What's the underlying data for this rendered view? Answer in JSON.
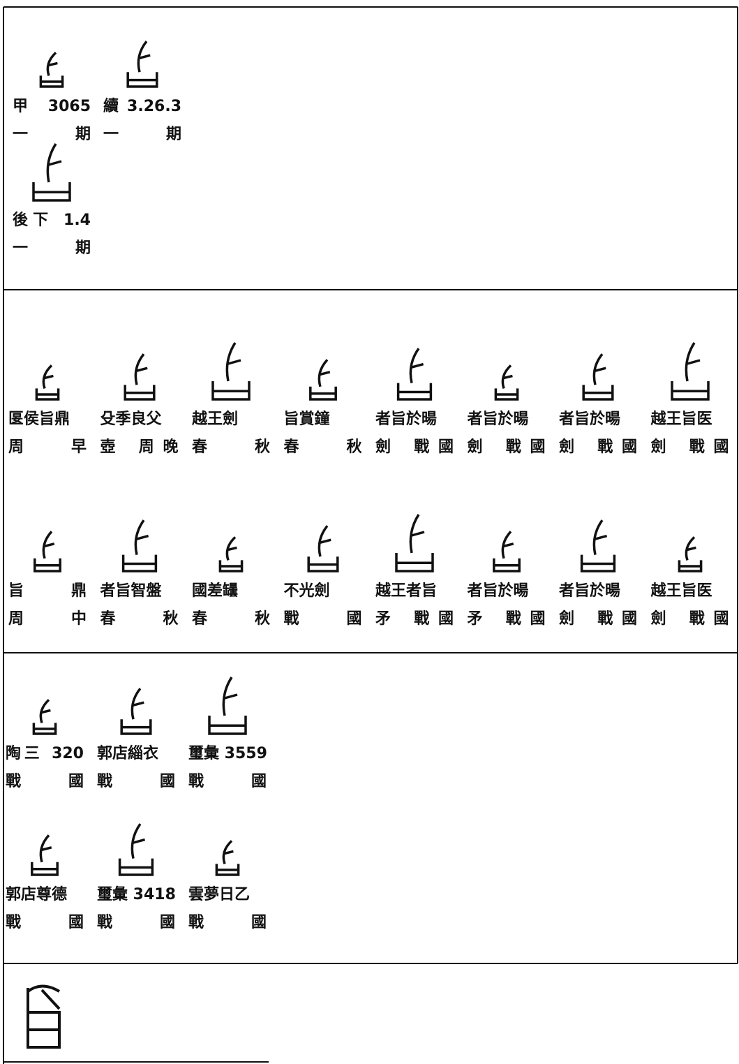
{
  "sections": [
    {
      "entries": [
        {
          "source": "甲 3065",
          "period": "一 期"
        },
        {
          "source": "續 3.26.3",
          "period": "一 期"
        },
        {
          "source": "後下 1.4",
          "period": "一 期"
        }
      ]
    },
    {
      "entries": [
        {
          "source": "匽侯旨鼎",
          "period": "周 早"
        },
        {
          "source": "殳季良父",
          "period": "壺 周晚"
        },
        {
          "source": "越王劍",
          "period": "春 秋"
        },
        {
          "source": "旨賞鐘",
          "period": "春 秋"
        },
        {
          "source": "者旨於暘",
          "period": "劍 戰國"
        },
        {
          "source": "者旨於暘",
          "period": "劍 戰國"
        },
        {
          "source": "者旨於暘",
          "period": "劍 戰國"
        },
        {
          "source": "越王旨医",
          "period": "劍 戰國"
        },
        {
          "source": "旨 鼎",
          "period": "周 中"
        },
        {
          "source": "者旨智盤",
          "period": "春 秋"
        },
        {
          "source": "國差罎",
          "period": "春 秋"
        },
        {
          "source": "不光劍",
          "period": "戰 國"
        },
        {
          "source": "越王者旨",
          "period": "矛 戰國"
        },
        {
          "source": "者旨於暘",
          "period": "矛 戰國"
        },
        {
          "source": "者旨於暘",
          "period": "劍 戰國"
        },
        {
          "source": "越王旨医",
          "period": "劍 戰國"
        }
      ]
    },
    {
      "entries": [
        {
          "source": "陶三 320",
          "period": "戰 國"
        },
        {
          "source": "郭店緇衣",
          "period": "戰 國"
        },
        {
          "source": "璽彙 3559",
          "period": "戰 國"
        },
        {
          "source": "郭店尊德",
          "period": "戰 國"
        },
        {
          "source": "璽彙 3418",
          "period": "戰 國"
        },
        {
          "source": "雲夢日乙",
          "period": "戰 國"
        }
      ]
    }
  ]
}
